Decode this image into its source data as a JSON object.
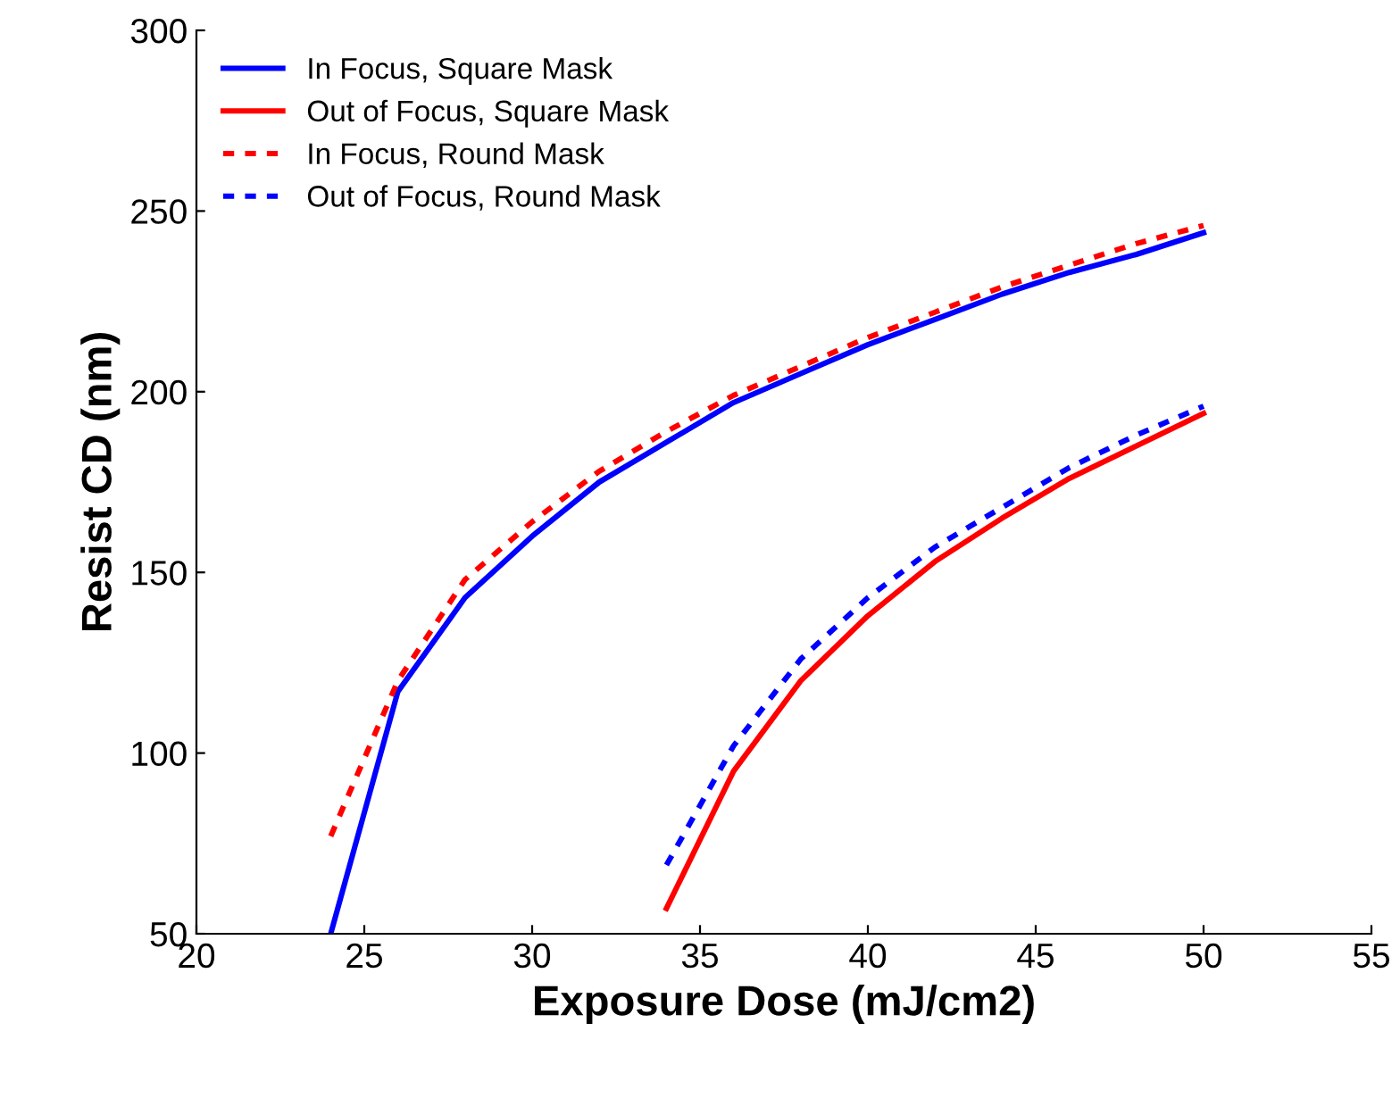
{
  "chart_data": {
    "type": "line",
    "xlabel": "Exposure Dose (mJ/cm2)",
    "ylabel": "Resist CD (nm)",
    "xlim": [
      20,
      55
    ],
    "xticks": [
      20,
      25,
      30,
      35,
      40,
      45,
      50,
      55
    ],
    "ylim": [
      50,
      300
    ],
    "yticks": [
      50,
      100,
      150,
      200,
      250,
      300
    ],
    "grid": false,
    "legend": "top left",
    "marker": "none",
    "series": [
      {
        "name": "In Focus, Square Mask",
        "color": "#0000ff",
        "line_style": "solid",
        "x": [
          24,
          26,
          28,
          30,
          32,
          34,
          36,
          38,
          40,
          42,
          44,
          46,
          48,
          50
        ],
        "values": [
          50,
          117,
          143,
          160,
          175,
          186,
          197,
          205,
          213,
          220,
          227,
          233,
          238,
          244
        ]
      },
      {
        "name": "Out of Focus, Square Mask",
        "color": "#ff0000",
        "line_style": "solid",
        "x": [
          34,
          36,
          38,
          40,
          42,
          44,
          46,
          48,
          50
        ],
        "values": [
          57,
          95,
          120,
          138,
          153,
          165,
          176,
          185,
          194
        ]
      },
      {
        "name": "In Focus, Round Mask",
        "color": "#ff0000",
        "line_style": "dotted",
        "x": [
          24,
          26,
          28,
          30,
          32,
          34,
          36,
          38,
          40,
          42,
          44,
          46,
          48,
          50
        ],
        "values": [
          77,
          120,
          148,
          164,
          178,
          189,
          199,
          207,
          215,
          222,
          229,
          235,
          241,
          246
        ]
      },
      {
        "name": "Out of Focus, Round Mask",
        "color": "#0000ff",
        "line_style": "dotted",
        "x": [
          34,
          36,
          38,
          40,
          42,
          44,
          46,
          48,
          50
        ],
        "values": [
          69,
          102,
          126,
          143,
          157,
          168,
          179,
          188,
          196
        ]
      }
    ]
  }
}
